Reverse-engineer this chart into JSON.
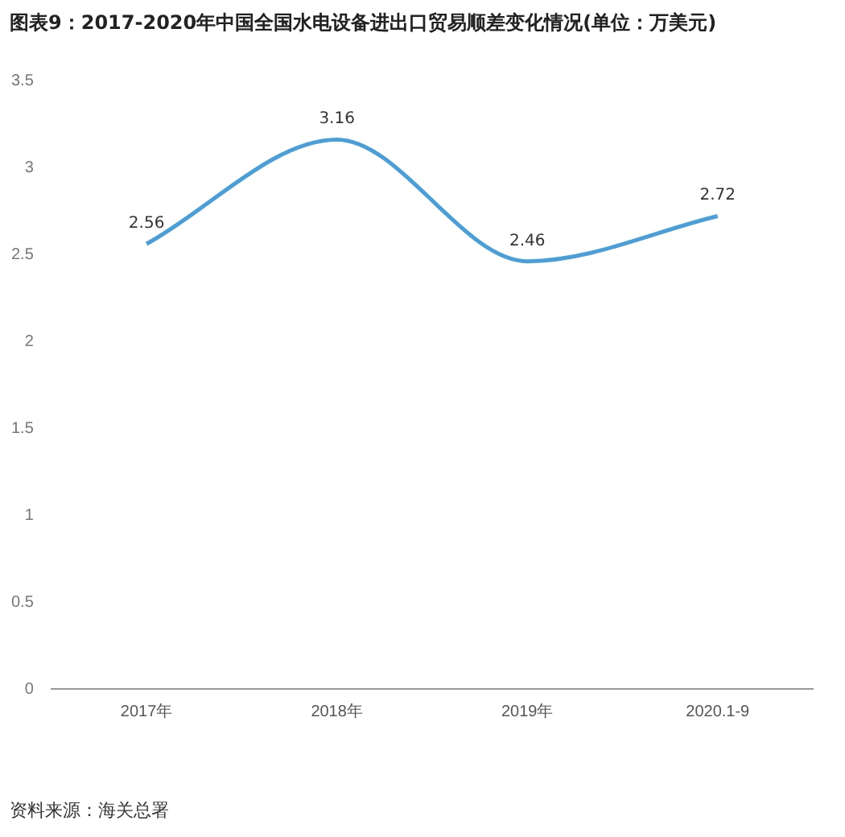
{
  "chart_data": {
    "type": "line",
    "title": "图表9：2017-2020年中国全国水电设备进出口贸易顺差变化情况(单位：万美元)",
    "categories": [
      "2017年",
      "2018年",
      "2019年",
      "2020.1-9"
    ],
    "series": [
      {
        "color": "#4a9fd8",
        "values": [
          2.56,
          3.16,
          2.46,
          2.72
        ]
      }
    ],
    "ylim": [
      0,
      3.5
    ],
    "yticks": [
      0,
      0.5,
      1,
      1.5,
      2,
      2.5,
      3,
      3.5
    ],
    "grid": false,
    "legend": false,
    "marker": "none",
    "line_style": "solid",
    "data_labels": true,
    "annotations": [
      "资料来源：海关总署"
    ]
  }
}
